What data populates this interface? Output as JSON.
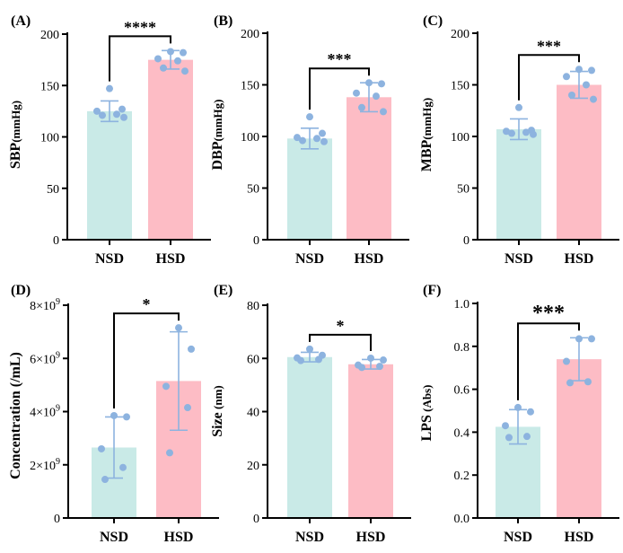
{
  "chart_data": [
    {
      "id": "A",
      "type": "bar",
      "panel_label": "(A)",
      "categories": [
        "NSD",
        "HSD"
      ],
      "values": [
        125,
        175
      ],
      "errors": [
        10,
        9
      ],
      "points": [
        [
          147,
          127,
          125,
          122,
          121,
          119
        ],
        [
          183,
          182,
          176,
          174,
          167,
          164
        ]
      ],
      "ylabel_main": "SBP",
      "ylabel_unit": "(mmHg)",
      "ylim": [
        0,
        200
      ],
      "yticks": [
        0,
        50,
        100,
        150,
        200
      ],
      "ytick_labels": [
        "0",
        "50",
        "100",
        "150",
        "200"
      ],
      "significance": "****",
      "sig_size": "large"
    },
    {
      "id": "B",
      "type": "bar",
      "panel_label": "(B)",
      "categories": [
        "NSD",
        "HSD"
      ],
      "values": [
        98,
        138
      ],
      "errors": [
        10,
        14
      ],
      "points": [
        [
          119,
          103,
          99,
          98,
          96,
          95
        ],
        [
          152,
          151,
          142,
          139,
          128,
          124
        ]
      ],
      "ylabel_main": "DBP",
      "ylabel_unit": "(mmHg)",
      "ylim": [
        0,
        200
      ],
      "yticks": [
        0,
        50,
        100,
        150,
        200
      ],
      "ytick_labels": [
        "0",
        "50",
        "100",
        "150",
        "200"
      ],
      "significance": "***",
      "sig_size": "large"
    },
    {
      "id": "C",
      "type": "bar",
      "panel_label": "(C)",
      "categories": [
        "NSD",
        "HSD"
      ],
      "values": [
        107,
        150
      ],
      "errors": [
        10,
        13
      ],
      "points": [
        [
          128,
          106,
          105,
          104,
          103,
          102
        ],
        [
          165,
          164,
          158,
          150,
          140,
          136
        ]
      ],
      "ylabel_main": "MBP",
      "ylabel_unit": "(mmHg)",
      "ylim": [
        0,
        200
      ],
      "yticks": [
        0,
        50,
        100,
        150,
        200
      ],
      "ytick_labels": [
        "0",
        "50",
        "100",
        "150",
        "200"
      ],
      "significance": "***",
      "sig_size": "large"
    },
    {
      "id": "D",
      "type": "bar",
      "panel_label": "(D)",
      "categories": [
        "NSD",
        "HSD"
      ],
      "values": [
        2.65,
        5.15
      ],
      "errors": [
        1.15,
        1.85
      ],
      "points": [
        [
          3.85,
          3.8,
          2.6,
          1.9,
          1.45
        ],
        [
          7.15,
          6.35,
          4.95,
          4.15,
          2.45
        ]
      ],
      "ylabel_main": "Concentration",
      "ylabel_unit": "(/mL)",
      "ylim": [
        0,
        8
      ],
      "yticks": [
        0,
        2,
        4,
        6,
        8
      ],
      "ytick_labels": [
        "0",
        "2×10",
        "4×10",
        "6×10",
        "8×10"
      ],
      "ytick_exponent": "9",
      "significance": "*",
      "sig_size": "large"
    },
    {
      "id": "E",
      "type": "bar",
      "panel_label": "(E)",
      "categories": [
        "NSD",
        "HSD"
      ],
      "values": [
        60.5,
        57.8
      ],
      "errors": [
        1.8,
        1.8
      ],
      "points": [
        [
          63.5,
          61.2,
          60.2,
          59.6,
          59.2
        ],
        [
          60.1,
          59.4,
          57.5,
          57.0,
          56.6
        ]
      ],
      "ylabel_main": "Size",
      "ylabel_unit": "(nm)",
      "ylim": [
        0,
        80
      ],
      "yticks": [
        0,
        20,
        40,
        60,
        80
      ],
      "ytick_labels": [
        "0",
        "20",
        "40",
        "60",
        "80"
      ],
      "significance": "*",
      "sig_size": "large"
    },
    {
      "id": "F",
      "type": "bar",
      "panel_label": "(F)",
      "categories": [
        "NSD",
        "HSD"
      ],
      "values": [
        0.425,
        0.74
      ],
      "errors": [
        0.08,
        0.1
      ],
      "points": [
        [
          0.515,
          0.495,
          0.43,
          0.38,
          0.375
        ],
        [
          0.835,
          0.835,
          0.73,
          0.635,
          0.63
        ]
      ],
      "ylabel_main": "LPS",
      "ylabel_unit": "(Abs)",
      "ylim": [
        0,
        1.0
      ],
      "yticks": [
        0,
        0.2,
        0.4,
        0.6,
        0.8,
        1.0
      ],
      "ytick_labels": [
        "0.0",
        "0.2",
        "0.4",
        "0.6",
        "0.8",
        "1.0"
      ],
      "significance": "***",
      "sig_size": "xlarge"
    }
  ],
  "colors": {
    "nsd_bar": "#c9eae7",
    "hsd_bar": "#fdbcc5",
    "points": "#8db3df",
    "error_bars": "#8db3df",
    "axis": "#000000"
  }
}
